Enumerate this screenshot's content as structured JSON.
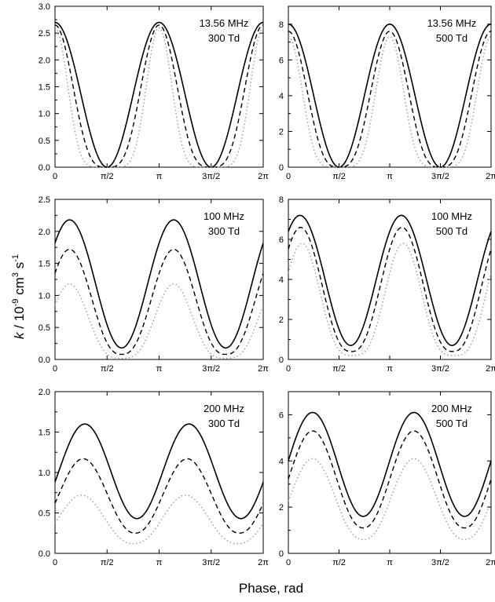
{
  "figure": {
    "xlabel": "Phase, rad",
    "ylabel_main": "k",
    "ylabel_unit": " / 10",
    "ylabel_exp1": "-9",
    "ylabel_mid": " cm",
    "ylabel_exp2": "3",
    "ylabel_s": " s",
    "ylabel_exp3": "-1"
  },
  "chart_data": [
    {
      "type": "line",
      "labels": [
        "13.56 MHz",
        "300 Td"
      ],
      "xlim": [
        0,
        6.283
      ],
      "ylim": [
        0,
        3.0
      ],
      "xticks": [
        "0",
        "π/2",
        "π",
        "3π/2",
        "2π"
      ],
      "yticks": [
        "0.0",
        "0.5",
        "1.0",
        "1.5",
        "2.0",
        "2.5",
        "3.0"
      ],
      "series": [
        {
          "style": "solid",
          "shape": "cos2",
          "peak": 2.7,
          "floor": 0.0,
          "baseline": 0.0,
          "phase": 0.0,
          "sharpness": 1.0
        },
        {
          "style": "dashed",
          "shape": "cos2",
          "peak": 2.65,
          "floor": 0.0,
          "baseline": 0.0,
          "phase": 0.0,
          "sharpness": 1.8
        },
        {
          "style": "dotted",
          "shape": "cos2",
          "peak": 2.6,
          "floor": 0.0,
          "baseline": 0.0,
          "phase": 0.0,
          "sharpness": 3.5
        }
      ]
    },
    {
      "type": "line",
      "labels": [
        "13.56 MHz",
        "500 Td"
      ],
      "xlim": [
        0,
        6.283
      ],
      "ylim": [
        0,
        9
      ],
      "xticks": [
        "0",
        "π/2",
        "π",
        "3π/2",
        "2π"
      ],
      "yticks": [
        "0",
        "2",
        "4",
        "6",
        "8"
      ],
      "series": [
        {
          "style": "solid",
          "shape": "cos2",
          "peak": 8.0,
          "floor": 0.0,
          "baseline": 0.0,
          "phase": 0.0,
          "sharpness": 1.0
        },
        {
          "style": "dashed",
          "shape": "cos2",
          "peak": 7.6,
          "floor": 0.0,
          "baseline": 0.0,
          "phase": 0.0,
          "sharpness": 1.6
        },
        {
          "style": "dotted",
          "shape": "cos2",
          "peak": 7.3,
          "floor": 0.0,
          "baseline": 0.0,
          "phase": 0.0,
          "sharpness": 2.8
        }
      ]
    },
    {
      "type": "line",
      "labels": [
        "100 MHz",
        "300 Td"
      ],
      "xlim": [
        0,
        6.283
      ],
      "ylim": [
        0,
        2.5
      ],
      "xticks": [
        "0",
        "π/2",
        "π",
        "3π/2",
        "2π"
      ],
      "yticks": [
        "0.0",
        "0.5",
        "1.0",
        "1.5",
        "2.0",
        "2.5"
      ],
      "series": [
        {
          "style": "solid",
          "shape": "cos2",
          "peak": 2.18,
          "floor": 0.18,
          "baseline": 0.0,
          "phase": 0.44,
          "sharpness": 1.0
        },
        {
          "style": "dashed",
          "shape": "cos2",
          "peak": 1.72,
          "floor": 0.08,
          "baseline": 0.0,
          "phase": 0.44,
          "sharpness": 1.3
        },
        {
          "style": "dotted",
          "shape": "cos2",
          "peak": 1.18,
          "floor": 0.02,
          "baseline": 0.0,
          "phase": 0.44,
          "sharpness": 1.7
        }
      ]
    },
    {
      "type": "line",
      "labels": [
        "100 MHz",
        "500 Td"
      ],
      "xlim": [
        0,
        6.283
      ],
      "ylim": [
        0,
        8
      ],
      "xticks": [
        "0",
        "π/2",
        "π",
        "3π/2",
        "2π"
      ],
      "yticks": [
        "0",
        "2",
        "4",
        "6",
        "8"
      ],
      "series": [
        {
          "style": "solid",
          "shape": "cos2",
          "peak": 7.2,
          "floor": 0.7,
          "baseline": 0.0,
          "phase": 0.36,
          "sharpness": 1.0
        },
        {
          "style": "dashed",
          "shape": "cos2",
          "peak": 6.6,
          "floor": 0.4,
          "baseline": 0.0,
          "phase": 0.38,
          "sharpness": 1.3
        },
        {
          "style": "dotted",
          "shape": "cos2",
          "peak": 5.8,
          "floor": 0.2,
          "baseline": 0.0,
          "phase": 0.42,
          "sharpness": 1.7
        }
      ]
    },
    {
      "type": "line",
      "labels": [
        "200 MHz",
        "300 Td"
      ],
      "xlim": [
        0,
        6.283
      ],
      "ylim": [
        0,
        2.0
      ],
      "xticks": [
        "0",
        "π/2",
        "π",
        "3π/2",
        "2π"
      ],
      "yticks": [
        "0.0",
        "0.5",
        "1.0",
        "1.5",
        "2.0"
      ],
      "series": [
        {
          "style": "solid",
          "shape": "cos2",
          "peak": 1.6,
          "floor": 0.43,
          "baseline": 0.0,
          "phase": 0.9,
          "sharpness": 1.0
        },
        {
          "style": "dashed",
          "shape": "cos2",
          "peak": 1.17,
          "floor": 0.25,
          "baseline": 0.0,
          "phase": 0.85,
          "sharpness": 1.1
        },
        {
          "style": "dotted",
          "shape": "cos2",
          "peak": 0.72,
          "floor": 0.12,
          "baseline": 0.0,
          "phase": 0.8,
          "sharpness": 1.2
        }
      ]
    },
    {
      "type": "line",
      "labels": [
        "200 MHz",
        "500 Td"
      ],
      "xlim": [
        0,
        6.283
      ],
      "ylim": [
        0,
        7
      ],
      "xticks": [
        "0",
        "π/2",
        "π",
        "3π/2",
        "2π"
      ],
      "yticks": [
        "0",
        "2",
        "4",
        "6"
      ],
      "series": [
        {
          "style": "solid",
          "shape": "cos2",
          "peak": 6.1,
          "floor": 1.6,
          "baseline": 0.0,
          "phase": 0.75,
          "sharpness": 1.0
        },
        {
          "style": "dashed",
          "shape": "cos2",
          "peak": 5.3,
          "floor": 1.1,
          "baseline": 0.0,
          "phase": 0.75,
          "sharpness": 1.1
        },
        {
          "style": "dotted",
          "shape": "cos2",
          "peak": 4.1,
          "floor": 0.6,
          "baseline": 0.0,
          "phase": 0.75,
          "sharpness": 1.2
        }
      ]
    }
  ]
}
